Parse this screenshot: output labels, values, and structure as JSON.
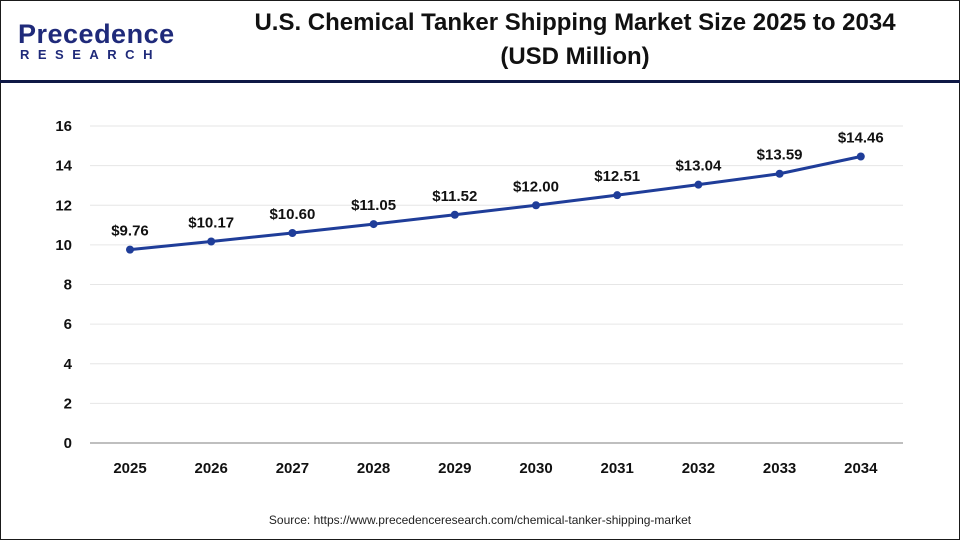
{
  "logo": {
    "main": "Precedence",
    "sub": "RESEARCH"
  },
  "title_line1": "U.S. Chemical Tanker Shipping Market Size 2025 to 2034",
  "title_line2": "(USD Million)",
  "source": "Source: https://www.precedenceresearch.com/chemical-tanker-shipping-market",
  "colors": {
    "line": "#1f3d99",
    "header_rule": "#0f1846",
    "grid": "#e6e6e6"
  },
  "chart_data": {
    "type": "line",
    "title": "U.S. Chemical Tanker Shipping Market Size 2025 to 2034 (USD Million)",
    "categories": [
      "2025",
      "2026",
      "2027",
      "2028",
      "2029",
      "2030",
      "2031",
      "2032",
      "2033",
      "2034"
    ],
    "values": [
      9.76,
      10.17,
      10.6,
      11.05,
      11.52,
      12.0,
      12.51,
      13.04,
      13.59,
      14.46
    ],
    "data_labels": [
      "$9.76",
      "$10.17",
      "$10.60",
      "$11.05",
      "$11.52",
      "$12.00",
      "$12.51",
      "$13.04",
      "$13.59",
      "$14.46"
    ],
    "ylim": [
      0,
      16
    ],
    "yticks": [
      0,
      2,
      4,
      6,
      8,
      10,
      12,
      14,
      16
    ],
    "grid": true,
    "legend": "none"
  }
}
